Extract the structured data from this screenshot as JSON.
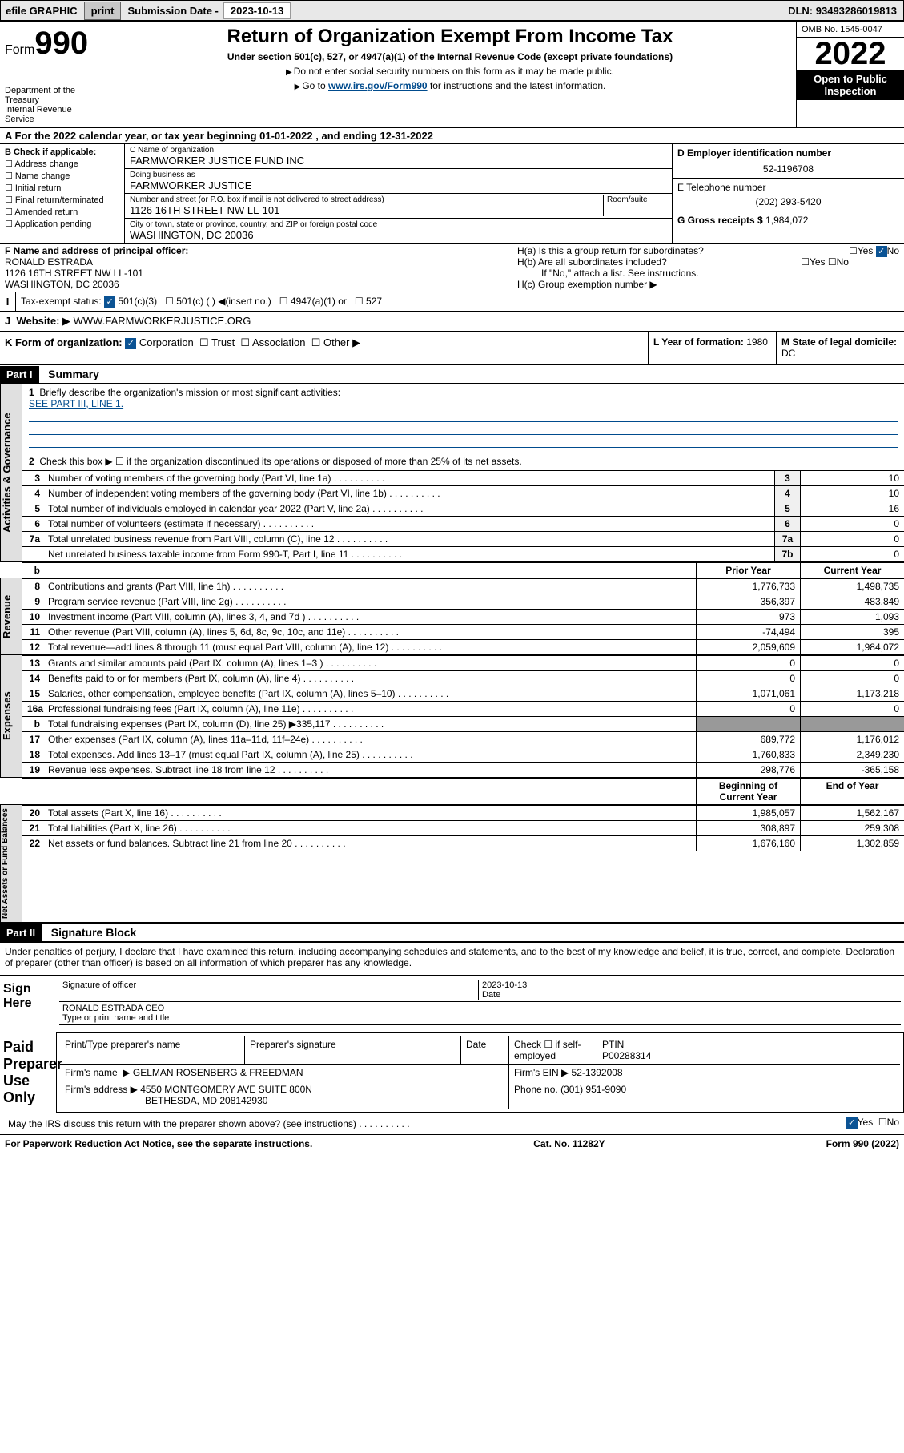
{
  "topbar": {
    "efile": "efile GRAPHIC",
    "print": "print",
    "sub_lbl": "Submission Date - ",
    "sub_val": "2023-10-13",
    "dln_lbl": "DLN: ",
    "dln": "93493286019813"
  },
  "header": {
    "form": "Form",
    "num": "990",
    "dept": "Department of the Treasury",
    "irs": "Internal Revenue Service",
    "title": "Return of Organization Exempt From Income Tax",
    "sub": "Under section 501(c), 527, or 4947(a)(1) of the Internal Revenue Code (except private foundations)",
    "note1": "Do not enter social security numbers on this form as it may be made public.",
    "note2_pre": "Go to ",
    "note2_link": "www.irs.gov/Form990",
    "note2_post": " for instructions and the latest information.",
    "omb": "OMB No. 1545-0047",
    "year": "2022",
    "open": "Open to Public",
    "insp": "Inspection"
  },
  "taxyear": {
    "pre": "A For the 2022 calendar year, or tax year beginning ",
    "beg": "01-01-2022",
    "mid": " , and ending ",
    "end": "12-31-2022"
  },
  "b": {
    "hdr": "B Check if applicable:",
    "items": [
      "Address change",
      "Name change",
      "Initial return",
      "Final return/terminated",
      "Amended return",
      "Application pending"
    ]
  },
  "c": {
    "name_lbl": "C Name of organization",
    "name": "FARMWORKER JUSTICE FUND INC",
    "dba_lbl": "Doing business as",
    "dba": "FARMWORKER JUSTICE",
    "addr_lbl": "Number and street (or P.O. box if mail is not delivered to street address)",
    "room_lbl": "Room/suite",
    "addr": "1126 16TH STREET NW LL-101",
    "city_lbl": "City or town, state or province, country, and ZIP or foreign postal code",
    "city": "WASHINGTON, DC  20036"
  },
  "d": {
    "lbl": "D Employer identification number",
    "val": "52-1196708"
  },
  "e": {
    "lbl": "E Telephone number",
    "val": "(202) 293-5420"
  },
  "g": {
    "lbl": "G Gross receipts $",
    "val": "1,984,072"
  },
  "f": {
    "lbl": "F Name and address of principal officer:",
    "name": "RONALD ESTRADA",
    "addr": "1126 16TH STREET NW LL-101",
    "city": "WASHINGTON, DC  20036"
  },
  "h": {
    "a": "H(a)  Is this a group return for subordinates?",
    "a_val": "No",
    "b": "H(b)  Are all subordinates included?",
    "b_note": "If \"No,\" attach a list. See instructions.",
    "c": "H(c)  Group exemption number"
  },
  "i": {
    "lbl": "Tax-exempt status:",
    "opts": [
      "501(c)(3)",
      "501(c) (  )",
      "(insert no.)",
      "4947(a)(1) or",
      "527"
    ]
  },
  "j": {
    "lbl": "Website:",
    "val": "WWW.FARMWORKERJUSTICE.ORG"
  },
  "k": {
    "lbl": "K Form of organization:",
    "opts": [
      "Corporation",
      "Trust",
      "Association",
      "Other"
    ]
  },
  "l": {
    "lbl": "L Year of formation: ",
    "val": "1980"
  },
  "m": {
    "lbl": "M State of legal domicile: ",
    "val": "DC"
  },
  "part1": {
    "hdr": "Part I",
    "title": "Summary"
  },
  "mission": {
    "lbl": "Briefly describe the organization's mission or most significant activities:",
    "val": "SEE PART III, LINE 1."
  },
  "lines": {
    "l2": "Check this box ▶ ☐ if the organization discontinued its operations or disposed of more than 25% of its net assets.",
    "l3": {
      "t": "Number of voting members of the governing body (Part VI, line 1a)",
      "v": "10"
    },
    "l4": {
      "t": "Number of independent voting members of the governing body (Part VI, line 1b)",
      "v": "10"
    },
    "l5": {
      "t": "Total number of individuals employed in calendar year 2022 (Part V, line 2a)",
      "v": "16"
    },
    "l6": {
      "t": "Total number of volunteers (estimate if necessary)",
      "v": "0"
    },
    "l7a": {
      "t": "Total unrelated business revenue from Part VIII, column (C), line 12",
      "v": "0"
    },
    "l7b": {
      "t": "Net unrelated business taxable income from Form 990-T, Part I, line 11",
      "v": "0"
    }
  },
  "cols": {
    "prior": "Prior Year",
    "curr": "Current Year",
    "beg": "Beginning of Current Year",
    "end": "End of Year"
  },
  "rev": [
    {
      "n": "8",
      "t": "Contributions and grants (Part VIII, line 1h)",
      "p": "1,776,733",
      "c": "1,498,735"
    },
    {
      "n": "9",
      "t": "Program service revenue (Part VIII, line 2g)",
      "p": "356,397",
      "c": "483,849"
    },
    {
      "n": "10",
      "t": "Investment income (Part VIII, column (A), lines 3, 4, and 7d )",
      "p": "973",
      "c": "1,093"
    },
    {
      "n": "11",
      "t": "Other revenue (Part VIII, column (A), lines 5, 6d, 8c, 9c, 10c, and 11e)",
      "p": "-74,494",
      "c": "395"
    },
    {
      "n": "12",
      "t": "Total revenue—add lines 8 through 11 (must equal Part VIII, column (A), line 12)",
      "p": "2,059,609",
      "c": "1,984,072"
    }
  ],
  "exp": [
    {
      "n": "13",
      "t": "Grants and similar amounts paid (Part IX, column (A), lines 1–3 )",
      "p": "0",
      "c": "0"
    },
    {
      "n": "14",
      "t": "Benefits paid to or for members (Part IX, column (A), line 4)",
      "p": "0",
      "c": "0"
    },
    {
      "n": "15",
      "t": "Salaries, other compensation, employee benefits (Part IX, column (A), lines 5–10)",
      "p": "1,071,061",
      "c": "1,173,218"
    },
    {
      "n": "16a",
      "t": "Professional fundraising fees (Part IX, column (A), line 11e)",
      "p": "0",
      "c": "0"
    },
    {
      "n": "b",
      "t": "Total fundraising expenses (Part IX, column (D), line 25) ▶335,117",
      "shaded": true
    },
    {
      "n": "17",
      "t": "Other expenses (Part IX, column (A), lines 11a–11d, 11f–24e)",
      "p": "689,772",
      "c": "1,176,012"
    },
    {
      "n": "18",
      "t": "Total expenses. Add lines 13–17 (must equal Part IX, column (A), line 25)",
      "p": "1,760,833",
      "c": "2,349,230"
    },
    {
      "n": "19",
      "t": "Revenue less expenses. Subtract line 18 from line 12",
      "p": "298,776",
      "c": "-365,158"
    }
  ],
  "net": [
    {
      "n": "20",
      "t": "Total assets (Part X, line 16)",
      "p": "1,985,057",
      "c": "1,562,167"
    },
    {
      "n": "21",
      "t": "Total liabilities (Part X, line 26)",
      "p": "308,897",
      "c": "259,308"
    },
    {
      "n": "22",
      "t": "Net assets or fund balances. Subtract line 21 from line 20",
      "p": "1,676,160",
      "c": "1,302,859"
    }
  ],
  "sides": {
    "ag": "Activities & Governance",
    "rev": "Revenue",
    "exp": "Expenses",
    "net": "Net Assets or Fund Balances"
  },
  "part2": {
    "hdr": "Part II",
    "title": "Signature Block"
  },
  "sig": {
    "decl": "Under penalties of perjury, I declare that I have examined this return, including accompanying schedules and statements, and to the best of my knowledge and belief, it is true, correct, and complete. Declaration of preparer (other than officer) is based on all information of which preparer has any knowledge.",
    "here": "Sign Here",
    "off_sig": "Signature of officer",
    "date_lbl": "Date",
    "date": "2023-10-13",
    "off_name": "RONALD ESTRADA CEO",
    "name_lbl": "Type or print name and title"
  },
  "paid": {
    "hdr": "Paid Preparer Use Only",
    "cols": [
      "Print/Type preparer's name",
      "Preparer's signature",
      "Date"
    ],
    "check": "Check ☐ if self-employed",
    "ptin_lbl": "PTIN",
    "ptin": "P00288314",
    "firm_lbl": "Firm's name",
    "firm": "GELMAN ROSENBERG & FREEDMAN",
    "ein_lbl": "Firm's EIN",
    "ein": "52-1392008",
    "addr_lbl": "Firm's address",
    "addr": "4550 MONTGOMERY AVE SUITE 800N",
    "city": "BETHESDA, MD  208142930",
    "phone_lbl": "Phone no.",
    "phone": "(301) 951-9090"
  },
  "discuss": {
    "t": "May the IRS discuss this return with the preparer shown above? (see instructions)",
    "yes": "Yes",
    "no": "No"
  },
  "footer": {
    "l": "For Paperwork Reduction Act Notice, see the separate instructions.",
    "m": "Cat. No. 11282Y",
    "r": "Form 990 (2022)"
  }
}
